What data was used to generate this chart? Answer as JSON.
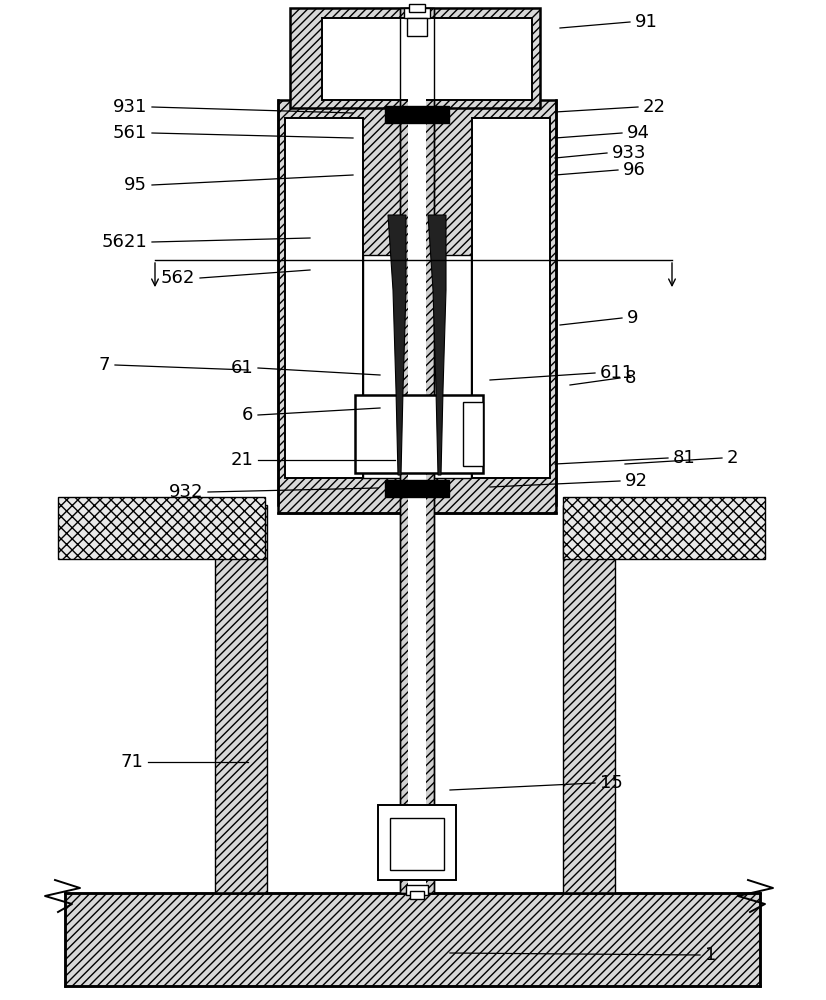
{
  "fig_width": 8.26,
  "fig_height": 10.0,
  "dpi": 100,
  "bg": "#ffffff",
  "lc": "#000000",
  "labels": [
    [
      "91",
      560,
      28,
      630,
      22,
      "left"
    ],
    [
      "22",
      555,
      112,
      638,
      107,
      "left"
    ],
    [
      "94",
      555,
      138,
      622,
      133,
      "left"
    ],
    [
      "933",
      555,
      158,
      607,
      153,
      "left"
    ],
    [
      "96",
      555,
      175,
      618,
      170,
      "left"
    ],
    [
      "931",
      353,
      113,
      152,
      107,
      "right"
    ],
    [
      "561",
      353,
      138,
      152,
      133,
      "right"
    ],
    [
      "95",
      353,
      175,
      152,
      185,
      "right"
    ],
    [
      "5621",
      310,
      238,
      152,
      242,
      "right"
    ],
    [
      "562",
      310,
      270,
      200,
      278,
      "right"
    ],
    [
      "61",
      380,
      375,
      258,
      368,
      "right"
    ],
    [
      "6",
      380,
      408,
      258,
      415,
      "right"
    ],
    [
      "611",
      490,
      380,
      595,
      373,
      "left"
    ],
    [
      "21",
      395,
      460,
      258,
      460,
      "right"
    ],
    [
      "932",
      378,
      488,
      208,
      492,
      "right"
    ],
    [
      "92",
      490,
      487,
      620,
      481,
      "left"
    ],
    [
      "81",
      555,
      464,
      668,
      458,
      "left"
    ],
    [
      "2",
      625,
      464,
      722,
      458,
      "left"
    ],
    [
      "9",
      560,
      325,
      622,
      318,
      "left"
    ],
    [
      "7",
      248,
      370,
      115,
      365,
      "right"
    ],
    [
      "8",
      570,
      385,
      620,
      378,
      "left"
    ],
    [
      "71",
      248,
      762,
      148,
      762,
      "right"
    ],
    [
      "15",
      450,
      790,
      595,
      783,
      "left"
    ],
    [
      "1",
      450,
      953,
      700,
      955,
      "left"
    ]
  ]
}
